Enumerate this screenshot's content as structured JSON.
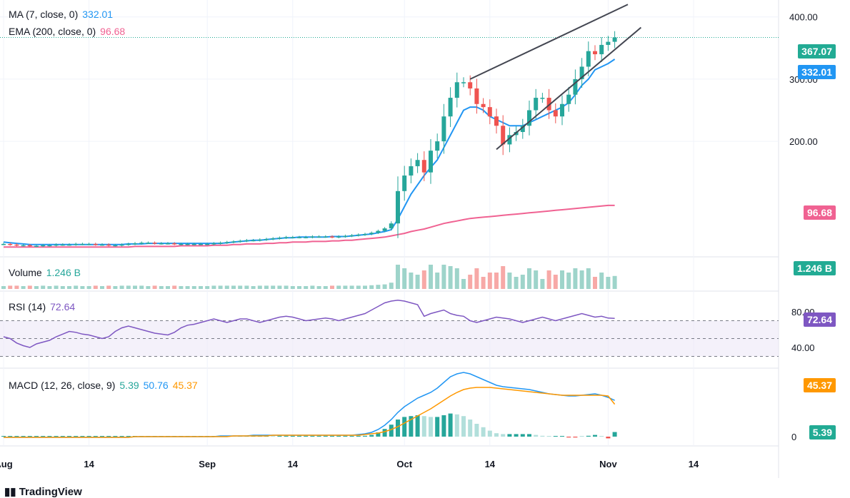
{
  "chart_data": {
    "type": "candlestick",
    "price_axis": {
      "ticks": [
        "400.00",
        "300.00",
        "200.00"
      ],
      "range": [
        20,
        410
      ]
    },
    "legend": {
      "ma": {
        "label": "MA (7, close, 0)",
        "value": "332.01"
      },
      "ema": {
        "label": "EMA (200, close, 0)",
        "value": "96.68"
      }
    },
    "labels": {
      "last_price": "367.07",
      "ma": "332.01",
      "ema": "96.68",
      "volume": "1.246 B",
      "rsi": "72.64",
      "macd": "5.39",
      "signal": "45.37"
    },
    "volume": {
      "label": "Volume",
      "value": "1.246 B"
    },
    "rsi": {
      "label": "RSI (14)",
      "value": "72.64",
      "ticks": [
        "80.00",
        "40.00"
      ],
      "range": [
        20,
        100
      ]
    },
    "macd": {
      "label": "MACD (12, 26, close, 9)",
      "hist": "5.39",
      "macd": "50.76",
      "signal": "45.37",
      "ticks": [
        "0"
      ]
    },
    "x_axis": {
      "labels": [
        "Aug",
        "14",
        "Sep",
        "14",
        "Oct",
        "14",
        "Nov",
        "14"
      ],
      "label_index": [
        0,
        13,
        31,
        44,
        61,
        74,
        92,
        105
      ]
    },
    "wedge": {
      "upper": [
        [
          71,
          300
        ],
        [
          95,
          420
        ]
      ],
      "lower": [
        [
          75,
          187
        ],
        [
          97,
          383
        ]
      ]
    },
    "closes": [
      35,
      34,
      33,
      33,
      32,
      32,
      33,
      33,
      34,
      34,
      34,
      35,
      35,
      35,
      34,
      34,
      33,
      33,
      34,
      35,
      36,
      37,
      37,
      36,
      36,
      36,
      35,
      35,
      35,
      35,
      35,
      35,
      36,
      37,
      38,
      39,
      40,
      41,
      41,
      42,
      43,
      44,
      45,
      46,
      46,
      46,
      46,
      47,
      47,
      47,
      46,
      47,
      48,
      49,
      50,
      51,
      53,
      56,
      60,
      68,
      120,
      145,
      160,
      170,
      150,
      185,
      200,
      240,
      270,
      295,
      295,
      285,
      260,
      255,
      240,
      225,
      195,
      210,
      215,
      225,
      250,
      270,
      270,
      250,
      240,
      260,
      275,
      300,
      320,
      345,
      340,
      355,
      360,
      367
    ],
    "ma_values": [
      38,
      37,
      36,
      35,
      34,
      34,
      34,
      34,
      34,
      34,
      34,
      34,
      34,
      34,
      34,
      34,
      34,
      34,
      34,
      35,
      35,
      35,
      36,
      36,
      36,
      36,
      36,
      36,
      36,
      36,
      36,
      36,
      36,
      36,
      37,
      38,
      39,
      40,
      41,
      41,
      42,
      43,
      44,
      45,
      45,
      46,
      46,
      46,
      46,
      46,
      47,
      47,
      47,
      48,
      49,
      50,
      51,
      53,
      55,
      58,
      75,
      95,
      115,
      130,
      145,
      158,
      170,
      190,
      210,
      230,
      250,
      255,
      255,
      250,
      240,
      235,
      230,
      225,
      225,
      225,
      230,
      235,
      240,
      245,
      250,
      255,
      262,
      275,
      290,
      300,
      315,
      320,
      325,
      332
    ],
    "ema_values": [
      30,
      30,
      30,
      30,
      30,
      30,
      30,
      30,
      30,
      30,
      30,
      30,
      30,
      30,
      30,
      30,
      30,
      30,
      30,
      30,
      31,
      31,
      31,
      31,
      31,
      31,
      31,
      32,
      32,
      32,
      32,
      32,
      33,
      33,
      33,
      34,
      34,
      35,
      35,
      35,
      36,
      36,
      37,
      37,
      38,
      38,
      38,
      39,
      39,
      39,
      40,
      40,
      41,
      41,
      42,
      43,
      44,
      45,
      46,
      48,
      50,
      52,
      55,
      57,
      59,
      62,
      65,
      68,
      70,
      72,
      74,
      76,
      77,
      78,
      79,
      80,
      81,
      82,
      83,
      84,
      85,
      86,
      87,
      88,
      89,
      90,
      91,
      92,
      93,
      94,
      95,
      96,
      97,
      97
    ],
    "rsi_values": [
      52,
      50,
      45,
      42,
      40,
      44,
      46,
      48,
      52,
      55,
      58,
      57,
      55,
      54,
      52,
      50,
      52,
      58,
      62,
      64,
      62,
      60,
      58,
      56,
      55,
      54,
      57,
      62,
      65,
      66,
      68,
      70,
      72,
      70,
      68,
      70,
      72,
      72,
      70,
      68,
      70,
      72,
      74,
      75,
      74,
      72,
      70,
      71,
      72,
      73,
      72,
      70,
      72,
      74,
      76,
      78,
      82,
      86,
      90,
      92,
      93,
      92,
      90,
      88,
      75,
      78,
      80,
      82,
      78,
      76,
      75,
      70,
      68,
      70,
      72,
      74,
      73,
      72,
      70,
      68,
      70,
      72,
      74,
      72,
      70,
      72,
      74,
      76,
      78,
      76,
      74,
      75,
      73,
      72.6
    ],
    "macd_values": [
      -1,
      -1,
      -1,
      -1,
      -1,
      -1,
      -1,
      -1,
      -1,
      -1,
      -1,
      -1,
      -1,
      -1,
      -1,
      -1,
      -1,
      -1,
      -1,
      -1,
      0,
      0,
      0,
      0,
      0,
      0,
      0,
      0,
      0,
      0,
      0,
      0,
      0,
      1,
      1,
      1,
      1,
      1,
      2,
      2,
      2,
      2,
      2,
      2,
      2,
      2,
      2,
      2,
      2,
      2,
      2,
      2,
      2,
      2,
      3,
      4,
      6,
      10,
      16,
      24,
      34,
      42,
      48,
      54,
      58,
      62,
      68,
      76,
      84,
      88,
      90,
      88,
      84,
      80,
      76,
      72,
      70,
      69,
      68,
      67,
      66,
      64,
      62,
      60,
      59,
      58,
      57,
      57,
      58,
      59,
      60,
      58,
      55,
      50.76
    ],
    "signal_values": [
      -1,
      -1,
      -1,
      -1,
      -1,
      -1,
      -1,
      -1,
      -1,
      -1,
      -1,
      -1,
      -1,
      -1,
      -1,
      -1,
      -1,
      -1,
      -1,
      -1,
      0,
      0,
      0,
      0,
      0,
      0,
      0,
      0,
      0,
      0,
      0,
      0,
      0,
      0,
      0,
      1,
      1,
      1,
      1,
      1,
      1,
      2,
      2,
      2,
      2,
      2,
      2,
      2,
      2,
      2,
      2,
      2,
      2,
      2,
      2,
      3,
      4,
      5,
      7,
      10,
      14,
      19,
      24,
      29,
      34,
      39,
      45,
      51,
      57,
      62,
      66,
      68,
      69,
      69,
      69,
      68,
      67,
      66,
      65,
      64,
      63,
      62,
      61,
      60,
      59,
      58,
      58,
      58,
      58,
      58,
      58,
      58,
      57,
      45.37
    ],
    "colors": {
      "up": "#26a69a",
      "down": "#ef5350",
      "ma": "#2196f3",
      "ema": "#f06292",
      "rsi": "#7e57c2",
      "macd": "#2196f3",
      "signal": "#ff9800"
    }
  },
  "branding": "TradingView"
}
